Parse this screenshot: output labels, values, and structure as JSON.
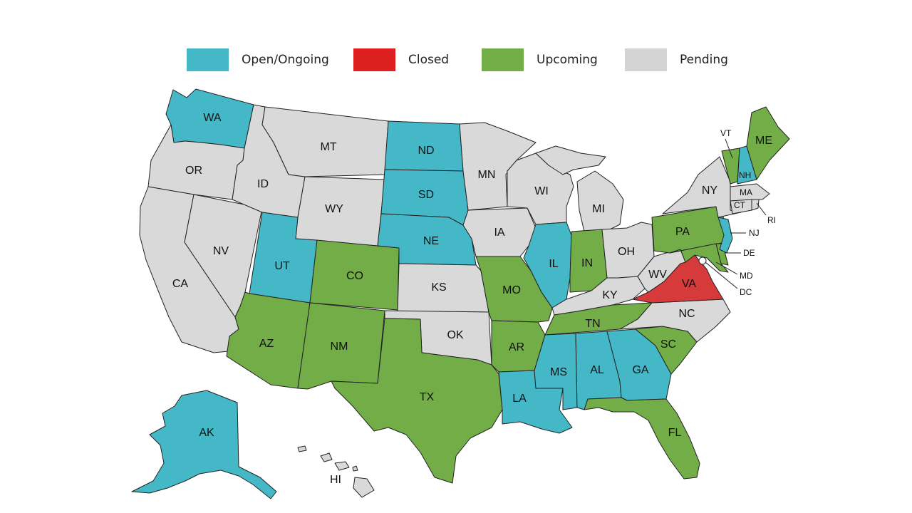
{
  "colors": {
    "open": "#45b8c8",
    "closed": "#d63a3a",
    "upcoming": "#72ad47",
    "pending": "#d9d9d9",
    "border": "#222222"
  },
  "legend": [
    {
      "key": "open",
      "label": "Open/Ongoing",
      "color": "#45b8c8"
    },
    {
      "key": "closed",
      "label": "Closed",
      "color": "#dd1f1f"
    },
    {
      "key": "upcoming",
      "label": "Upcoming",
      "color": "#72ad47"
    },
    {
      "key": "pending",
      "label": "Pending",
      "color": "#d4d4d4"
    }
  ],
  "states": {
    "WA": "open",
    "OR": "pending",
    "CA": "pending",
    "NV": "pending",
    "ID": "pending",
    "MT": "pending",
    "WY": "pending",
    "UT": "open",
    "AZ": "upcoming",
    "CO": "upcoming",
    "NM": "upcoming",
    "ND": "open",
    "SD": "open",
    "NE": "open",
    "KS": "pending",
    "OK": "pending",
    "TX": "upcoming",
    "MN": "pending",
    "IA": "pending",
    "MO": "upcoming",
    "AR": "upcoming",
    "LA": "open",
    "WI": "pending",
    "IL": "open",
    "MI": "pending",
    "IN": "upcoming",
    "OH": "pending",
    "KY": "pending",
    "TN": "upcoming",
    "MS": "open",
    "AL": "open",
    "GA": "open",
    "FL": "upcoming",
    "SC": "upcoming",
    "NC": "pending",
    "VA": "closed",
    "WV": "pending",
    "PA": "upcoming",
    "NY": "pending",
    "VT": "upcoming",
    "NH": "open",
    "ME": "upcoming",
    "MA": "pending",
    "CT": "pending",
    "RI": "pending",
    "NJ": "open",
    "DE": "upcoming",
    "MD": "upcoming",
    "DC": "pending",
    "AK": "open",
    "HI": "pending"
  },
  "labels": {
    "WA": "WA",
    "OR": "OR",
    "CA": "CA",
    "NV": "NV",
    "ID": "ID",
    "MT": "MT",
    "WY": "WY",
    "UT": "UT",
    "AZ": "AZ",
    "CO": "CO",
    "NM": "NM",
    "ND": "ND",
    "SD": "SD",
    "NE": "NE",
    "KS": "KS",
    "OK": "OK",
    "TX": "TX",
    "MN": "MN",
    "IA": "IA",
    "MO": "MO",
    "AR": "AR",
    "LA": "LA",
    "WI": "WI",
    "IL": "IL",
    "MI": "MI",
    "IN": "IN",
    "OH": "OH",
    "KY": "KY",
    "TN": "TN",
    "MS": "MS",
    "AL": "AL",
    "GA": "GA",
    "FL": "FL",
    "SC": "SC",
    "NC": "NC",
    "VA": "VA",
    "WV": "WV",
    "PA": "PA",
    "NY": "NY",
    "VT": "VT",
    "NH": "NH",
    "ME": "ME",
    "MA": "MA",
    "CT": "CT",
    "RI": "RI",
    "NJ": "NJ",
    "DE": "DE",
    "MD": "MD",
    "DC": "DC",
    "AK": "AK",
    "HI": "HI"
  }
}
